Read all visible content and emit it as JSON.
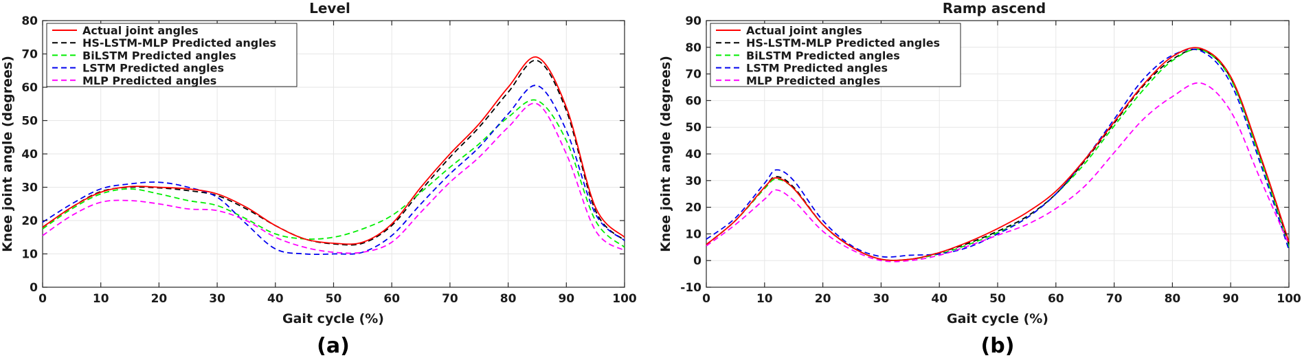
{
  "chart_data": [
    {
      "type": "line",
      "panel_label": "(a)",
      "title": "Level",
      "xlabel": "Gait cycle (%)",
      "ylabel": "Knee joint angle (degrees)",
      "xlim": [
        0,
        100
      ],
      "ylim": [
        0,
        80
      ],
      "xticks": [
        0,
        10,
        20,
        30,
        40,
        50,
        60,
        70,
        80,
        90,
        100
      ],
      "yticks": [
        0,
        10,
        20,
        30,
        40,
        50,
        60,
        70,
        80
      ],
      "grid": true,
      "legend_position": "top-left",
      "x": [
        0,
        5,
        10,
        15,
        20,
        25,
        30,
        35,
        40,
        45,
        50,
        55,
        60,
        65,
        70,
        75,
        80,
        85,
        90,
        95,
        100
      ],
      "series": [
        {
          "name": "Actual joint angles",
          "color": "#ff0000",
          "dash": "solid",
          "values": [
            18,
            24,
            28.5,
            30.2,
            30,
            29.5,
            28,
            24,
            18.5,
            14.5,
            13.2,
            13.5,
            19,
            30,
            40,
            49,
            60,
            69,
            54,
            24,
            15
          ]
        },
        {
          "name": "HS-LSTM-MLP Predicted angles",
          "color": "#000000",
          "dash": "dashed",
          "values": [
            18,
            24,
            28.7,
            30,
            29.8,
            29,
            27.5,
            23.5,
            18.5,
            14.5,
            13,
            13.2,
            18.5,
            29,
            39,
            48,
            58.5,
            68,
            53,
            23,
            14
          ]
        },
        {
          "name": "BiLSTM Predicted angles",
          "color": "#00ee00",
          "dash": "dashed",
          "values": [
            17.5,
            23.5,
            28,
            29.5,
            28,
            26,
            24.5,
            20.5,
            16,
            14.5,
            15,
            17.5,
            21.5,
            28.5,
            36,
            43,
            51,
            56,
            44,
            20,
            12
          ]
        },
        {
          "name": "LSTM Predicted angles",
          "color": "#0000ee",
          "dash": "dashed",
          "values": [
            19.5,
            25,
            29.5,
            31,
            31.5,
            30,
            27,
            19,
            11.5,
            10,
            10,
            10.5,
            15.5,
            25,
            34,
            42,
            52,
            60.5,
            47,
            22,
            14
          ]
        },
        {
          "name": "MLP Predicted angles",
          "color": "#ff00ff",
          "dash": "dashed",
          "values": [
            15.5,
            21.5,
            25.5,
            26,
            25,
            23.5,
            23,
            20,
            15,
            12,
            10.5,
            10.5,
            13.5,
            22.5,
            31.5,
            39,
            48,
            55,
            40,
            17,
            11
          ]
        }
      ]
    },
    {
      "type": "line",
      "panel_label": "(b)",
      "title": "Ramp ascend",
      "xlabel": "Gait cycle (%)",
      "ylabel": "Knee joint angle (degrees)",
      "xlim": [
        0,
        100
      ],
      "ylim": [
        -10,
        90
      ],
      "xticks": [
        0,
        10,
        20,
        30,
        40,
        50,
        60,
        70,
        80,
        90,
        100
      ],
      "yticks": [
        -10,
        0,
        10,
        20,
        30,
        40,
        50,
        60,
        70,
        80,
        90
      ],
      "grid": true,
      "legend_position": "top-left",
      "x": [
        0,
        5,
        10,
        12,
        15,
        20,
        25,
        30,
        35,
        40,
        45,
        50,
        55,
        60,
        65,
        70,
        75,
        80,
        85,
        90,
        95,
        100
      ],
      "series": [
        {
          "name": "Actual joint angles",
          "color": "#ff0000",
          "dash": "solid",
          "values": [
            6,
            15,
            27.5,
            31,
            27,
            13.5,
            5,
            0.5,
            0.5,
            3,
            7,
            12,
            18,
            26,
            38,
            52,
            66,
            76.5,
            79.5,
            69,
            40,
            7
          ]
        },
        {
          "name": "HS-LSTM-MLP Predicted angles",
          "color": "#000000",
          "dash": "dashed",
          "values": [
            6,
            15,
            27.5,
            31.5,
            27.5,
            13.5,
            5,
            0.5,
            0.5,
            3,
            6.5,
            11,
            16.5,
            25,
            37.5,
            51.5,
            65.5,
            75.5,
            79,
            68.5,
            39.5,
            6
          ]
        },
        {
          "name": "BiLSTM Predicted angles",
          "color": "#00ee00",
          "dash": "dashed",
          "values": [
            6,
            15,
            27,
            30.5,
            27,
            13.5,
            5,
            0.5,
            0.5,
            2.5,
            6,
            10.5,
            16,
            25,
            36.5,
            50.5,
            64,
            75,
            79,
            68,
            38.5,
            5
          ]
        },
        {
          "name": "LSTM Predicted angles",
          "color": "#0000ee",
          "dash": "dashed",
          "values": [
            8,
            16,
            29,
            34,
            30,
            15,
            5.5,
            1.5,
            2,
            2.5,
            5,
            10,
            16,
            25,
            38,
            53,
            68,
            77,
            78.5,
            66.5,
            37,
            4
          ]
        },
        {
          "name": "MLP Predicted angles",
          "color": "#ff00ff",
          "dash": "dashed",
          "values": [
            5.5,
            13.5,
            23,
            26.5,
            22.5,
            11,
            4,
            0,
            0,
            2,
            5.5,
            9.5,
            13.5,
            19.5,
            28,
            40.5,
            53,
            61.5,
            66.5,
            56,
            31,
            6
          ]
        }
      ]
    }
  ]
}
